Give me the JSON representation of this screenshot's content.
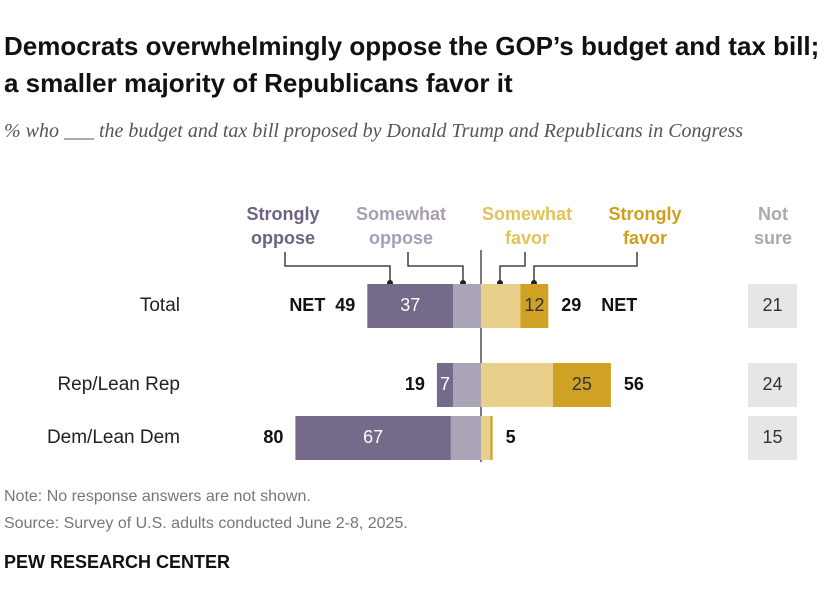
{
  "chart_data": {
    "type": "diverging-bar",
    "title": "Democrats overwhelmingly oppose the GOP’s budget and tax bill; a smaller majority of Republicans favor it",
    "subtitle": "% who ___ the budget and tax bill proposed by Donald Trump and Republicans in Congress",
    "categories": [
      "Total",
      "Rep/Lean Rep",
      "Dem/Lean Dem"
    ],
    "series": [
      {
        "name": "Strongly oppose",
        "side": "oppose",
        "color": "#756a89",
        "label_color": "#6e6283",
        "show_labels": true,
        "values": [
          37,
          7,
          67
        ]
      },
      {
        "name": "Somewhat oppose",
        "side": "oppose",
        "color": "#aba3b6",
        "label_color": "#a89eb4",
        "show_labels": false,
        "values": [
          12,
          12,
          13
        ]
      },
      {
        "name": "Somewhat favor",
        "side": "favor",
        "color": "#e8d08a",
        "label_color": "#e2c35a",
        "show_labels": false,
        "values": [
          17,
          31,
          4
        ]
      },
      {
        "name": "Strongly favor",
        "side": "favor",
        "color": "#cfa226",
        "label_color": "#d09f1c",
        "show_labels": true,
        "values": [
          12,
          25,
          1
        ]
      }
    ],
    "net_label": "NET",
    "net_oppose": [
      49,
      19,
      80
    ],
    "net_favor": [
      29,
      56,
      5
    ],
    "not_sure": {
      "name": "Not sure",
      "values": [
        21,
        24,
        15
      ]
    },
    "note": "Note: No response answers are not shown.",
    "source": "Source: Survey of U.S. adults conducted June 2-8, 2025.",
    "footer": "PEW RESEARCH CENTER"
  }
}
